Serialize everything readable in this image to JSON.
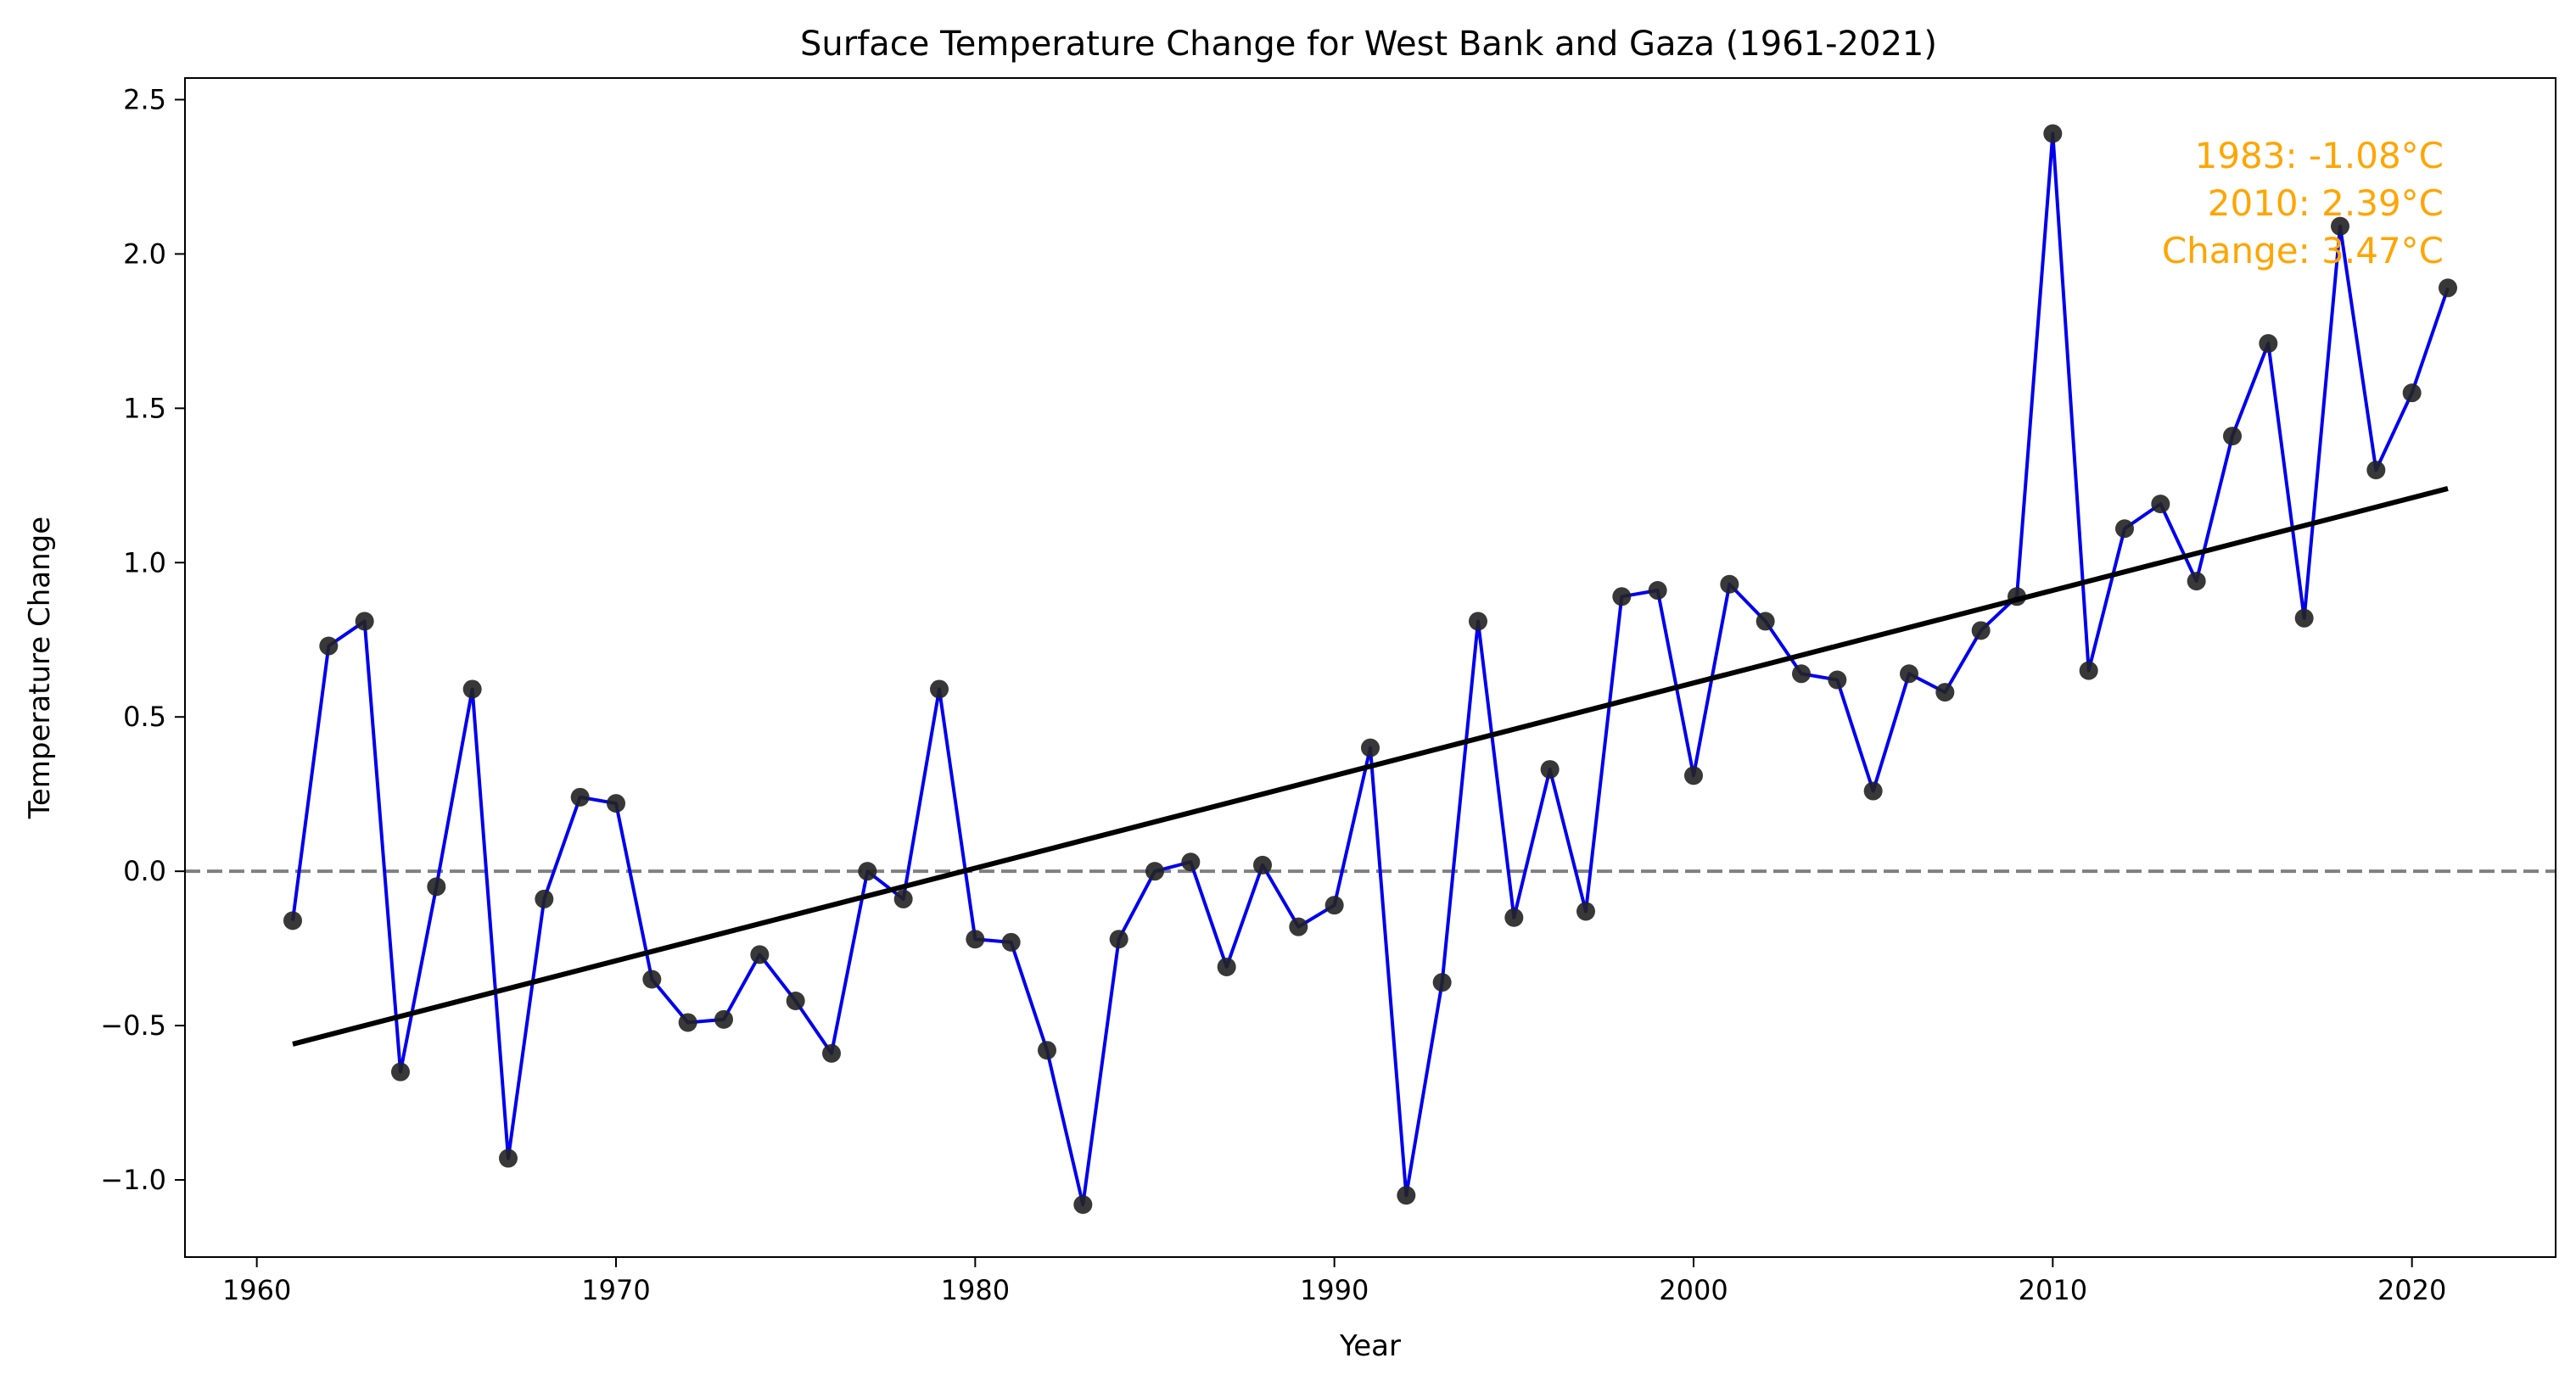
{
  "chart_data": {
    "type": "line",
    "title": "Surface Temperature Change for West Bank and Gaza (1961-2021)",
    "xlabel": "Year",
    "ylabel": "Temperature Change",
    "xlim": [
      1958,
      2024
    ],
    "ylim": [
      -1.25,
      2.57
    ],
    "x_ticks": [
      1960,
      1970,
      1980,
      1990,
      2000,
      2010,
      2020
    ],
    "y_ticks": [
      -1.0,
      -0.5,
      0.0,
      0.5,
      1.0,
      1.5,
      2.0,
      2.5
    ],
    "y_tick_labels": [
      "−1.0",
      "−0.5",
      "0.0",
      "0.5",
      "1.0",
      "1.5",
      "2.0",
      "2.5"
    ],
    "grid": false,
    "reference_line": {
      "y": 0.0,
      "style": "dashed",
      "color": "#808080"
    },
    "series": [
      {
        "color": "#0000ee",
        "marker_color": "#222222",
        "x": [
          1961,
          1962,
          1963,
          1964,
          1965,
          1966,
          1967,
          1968,
          1969,
          1970,
          1971,
          1972,
          1973,
          1974,
          1975,
          1976,
          1977,
          1978,
          1979,
          1980,
          1981,
          1982,
          1983,
          1984,
          1985,
          1986,
          1987,
          1988,
          1989,
          1990,
          1991,
          1992,
          1993,
          1994,
          1995,
          1996,
          1997,
          1998,
          1999,
          2000,
          2001,
          2002,
          2003,
          2004,
          2005,
          2006,
          2007,
          2008,
          2009,
          2010,
          2011,
          2012,
          2013,
          2014,
          2015,
          2016,
          2017,
          2018,
          2019,
          2020,
          2021
        ],
        "y": [
          -0.16,
          0.73,
          0.81,
          -0.65,
          -0.05,
          0.59,
          -0.93,
          -0.09,
          0.24,
          0.22,
          -0.35,
          -0.49,
          -0.48,
          -0.27,
          -0.42,
          -0.59,
          0.0,
          -0.09,
          0.59,
          -0.22,
          -0.23,
          -0.58,
          -1.08,
          -0.22,
          0.0,
          0.03,
          -0.31,
          0.02,
          -0.18,
          -0.11,
          0.4,
          -1.05,
          -0.36,
          0.81,
          -0.15,
          0.33,
          -0.13,
          0.89,
          0.91,
          0.31,
          0.93,
          0.81,
          0.64,
          0.62,
          0.26,
          0.64,
          0.58,
          0.78,
          0.89,
          2.39,
          0.65,
          1.11,
          1.19,
          0.94,
          1.41,
          1.71,
          0.82,
          2.09,
          1.3,
          1.55,
          1.89
        ]
      }
    ],
    "trend_line": {
      "color": "#000000",
      "x": [
        1961,
        2021
      ],
      "y": [
        -0.56,
        1.24
      ]
    },
    "annotation": {
      "color": "#ffa500",
      "lines": [
        "1983: -1.08°C",
        "2010: 2.39°C",
        "Change: 3.47°C"
      ]
    }
  }
}
